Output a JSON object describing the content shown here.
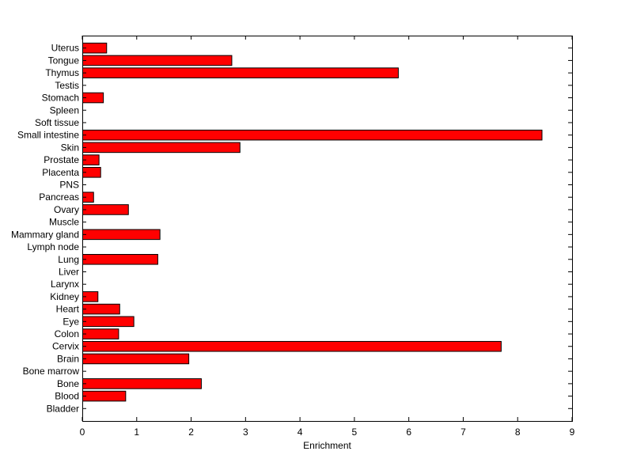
{
  "chart_data": {
    "type": "bar",
    "orientation": "horizontal",
    "categories": [
      "Bladder",
      "Blood",
      "Bone",
      "Bone marrow",
      "Brain",
      "Cervix",
      "Colon",
      "Eye",
      "Heart",
      "Kidney",
      "Larynx",
      "Liver",
      "Lung",
      "Lymph node",
      "Mammary gland",
      "Muscle",
      "Ovary",
      "Pancreas",
      "PNS",
      "Placenta",
      "Prostate",
      "Skin",
      "Small intestine",
      "Soft tissue",
      "Spleen",
      "Stomach",
      "Testis",
      "Thymus",
      "Tongue",
      "Uterus"
    ],
    "values": [
      0,
      0.79,
      2.18,
      0,
      1.95,
      7.69,
      0.66,
      0.94,
      0.68,
      0.28,
      0,
      0,
      1.38,
      0,
      1.42,
      0,
      0.84,
      0.2,
      0,
      0.33,
      0.3,
      2.89,
      8.44,
      0,
      0,
      0.38,
      0,
      5.8,
      2.74,
      0.44
    ],
    "title": "",
    "xlabel": "Enrichment",
    "ylabel": "",
    "xlim": [
      0,
      9
    ],
    "xticks": [
      0,
      1,
      2,
      3,
      4,
      5,
      6,
      7,
      8,
      9
    ],
    "bar_color": "#ff0000",
    "edge_color": "#000000",
    "grid": false,
    "legend": "none"
  }
}
